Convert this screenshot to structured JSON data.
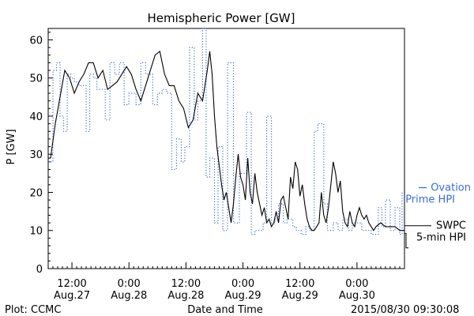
{
  "chart_data": {
    "type": "line",
    "title": "Hemispheric Power [GW]",
    "xlabel": "Date and Time",
    "ylabel": "P [GW]",
    "ylim": [
      0,
      63
    ],
    "xlim": [
      "2015-08-27T07:00",
      "2015-08-30T10:00"
    ],
    "grid": false,
    "yticks": [
      0,
      10,
      20,
      30,
      40,
      50,
      60
    ],
    "xticks": [
      {
        "t": "2015-08-27T12:00",
        "time": "12:00",
        "date": "Aug.27"
      },
      {
        "t": "2015-08-28T00:00",
        "time": "0:00",
        "date": "Aug.28"
      },
      {
        "t": "2015-08-28T12:00",
        "time": "12:00",
        "date": "Aug.28"
      },
      {
        "t": "2015-08-29T00:00",
        "time": "0:00",
        "date": "Aug.29"
      },
      {
        "t": "2015-08-29T12:00",
        "time": "12:00",
        "date": "Aug.29"
      },
      {
        "t": "2015-08-30T00:00",
        "time": "0:00",
        "date": "Aug.30"
      }
    ],
    "series": [
      {
        "name": "Ovation Prime HPI",
        "color": "#3b6fd6",
        "style": "stepped-dotted",
        "points": [
          [
            "2015-08-27T07:00",
            28
          ],
          [
            "2015-08-27T08:00",
            52
          ],
          [
            "2015-08-27T08:45",
            54
          ],
          [
            "2015-08-27T09:30",
            40
          ],
          [
            "2015-08-27T10:15",
            36
          ],
          [
            "2015-08-27T11:00",
            51
          ],
          [
            "2015-08-27T11:45",
            50
          ],
          [
            "2015-08-27T12:30",
            49
          ],
          [
            "2015-08-27T13:30",
            48
          ],
          [
            "2015-08-27T15:00",
            36
          ],
          [
            "2015-08-27T15:45",
            51
          ],
          [
            "2015-08-27T16:30",
            50
          ],
          [
            "2015-08-27T17:15",
            47
          ],
          [
            "2015-08-27T19:00",
            39
          ],
          [
            "2015-08-27T20:00",
            54
          ],
          [
            "2015-08-27T21:00",
            51
          ],
          [
            "2015-08-27T22:00",
            54
          ],
          [
            "2015-08-27T23:00",
            43
          ],
          [
            "2015-08-28T00:00",
            46
          ],
          [
            "2015-08-28T01:30",
            43
          ],
          [
            "2015-08-28T02:30",
            54
          ],
          [
            "2015-08-28T03:30",
            51
          ],
          [
            "2015-08-28T05:00",
            43
          ],
          [
            "2015-08-28T06:00",
            46
          ],
          [
            "2015-08-28T07:00",
            47
          ],
          [
            "2015-08-28T08:00",
            46
          ],
          [
            "2015-08-28T09:00",
            26
          ],
          [
            "2015-08-28T10:00",
            34
          ],
          [
            "2015-08-28T11:00",
            28
          ],
          [
            "2015-08-28T11:45",
            32
          ],
          [
            "2015-08-28T12:45",
            58
          ],
          [
            "2015-08-28T13:45",
            39
          ],
          [
            "2015-08-28T14:30",
            44
          ],
          [
            "2015-08-28T15:30",
            63
          ],
          [
            "2015-08-28T16:15",
            24
          ],
          [
            "2015-08-28T17:00",
            29
          ],
          [
            "2015-08-28T18:00",
            12
          ],
          [
            "2015-08-28T18:45",
            32
          ],
          [
            "2015-08-28T19:45",
            10
          ],
          [
            "2015-08-28T20:45",
            54
          ],
          [
            "2015-08-28T22:00",
            12
          ],
          [
            "2015-08-28T23:15",
            25
          ],
          [
            "2015-08-29T00:00",
            25
          ],
          [
            "2015-08-29T00:45",
            41
          ],
          [
            "2015-08-29T01:45",
            9
          ],
          [
            "2015-08-29T02:30",
            10
          ],
          [
            "2015-08-29T03:15",
            10
          ],
          [
            "2015-08-29T04:15",
            12
          ],
          [
            "2015-08-29T05:00",
            40
          ],
          [
            "2015-08-29T06:00",
            12
          ],
          [
            "2015-08-29T06:45",
            13
          ],
          [
            "2015-08-29T07:30",
            17
          ],
          [
            "2015-08-29T08:30",
            12
          ],
          [
            "2015-08-29T09:15",
            13
          ],
          [
            "2015-08-29T10:30",
            11
          ],
          [
            "2015-08-29T11:15",
            10
          ],
          [
            "2015-08-29T12:15",
            9
          ],
          [
            "2015-08-29T13:15",
            11
          ],
          [
            "2015-08-29T14:00",
            10
          ],
          [
            "2015-08-29T15:00",
            36
          ],
          [
            "2015-08-29T15:45",
            38
          ],
          [
            "2015-08-29T17:00",
            17
          ],
          [
            "2015-08-29T17:45",
            10
          ],
          [
            "2015-08-29T19:00",
            12
          ],
          [
            "2015-08-29T20:00",
            10
          ],
          [
            "2015-08-29T21:00",
            13
          ],
          [
            "2015-08-29T22:15",
            10
          ],
          [
            "2015-08-29T23:00",
            12
          ],
          [
            "2015-08-30T01:00",
            10
          ],
          [
            "2015-08-30T03:00",
            9
          ],
          [
            "2015-08-30T04:30",
            16
          ],
          [
            "2015-08-30T05:15",
            11
          ],
          [
            "2015-08-30T06:00",
            18
          ],
          [
            "2015-08-30T07:00",
            10
          ],
          [
            "2015-08-30T08:00",
            16
          ],
          [
            "2015-08-30T09:00",
            9
          ],
          [
            "2015-08-30T09:30",
            20
          ]
        ]
      },
      {
        "name": "SWPC 5-min HPI",
        "color": "#000000",
        "style": "solid",
        "points": [
          [
            "2015-08-27T07:00",
            29
          ],
          [
            "2015-08-27T07:30",
            29
          ],
          [
            "2015-08-27T08:30",
            38
          ],
          [
            "2015-08-27T09:30",
            45
          ],
          [
            "2015-08-27T10:30",
            52
          ],
          [
            "2015-08-27T11:30",
            50
          ],
          [
            "2015-08-27T12:30",
            46
          ],
          [
            "2015-08-27T13:30",
            49
          ],
          [
            "2015-08-27T14:30",
            51
          ],
          [
            "2015-08-27T15:30",
            54
          ],
          [
            "2015-08-27T16:30",
            54
          ],
          [
            "2015-08-27T17:30",
            50
          ],
          [
            "2015-08-27T18:30",
            52
          ],
          [
            "2015-08-27T19:30",
            47
          ],
          [
            "2015-08-27T20:30",
            48
          ],
          [
            "2015-08-27T21:30",
            49
          ],
          [
            "2015-08-27T22:30",
            51
          ],
          [
            "2015-08-27T23:30",
            53
          ],
          [
            "2015-08-28T00:30",
            51
          ],
          [
            "2015-08-28T01:30",
            47
          ],
          [
            "2015-08-28T02:30",
            44
          ],
          [
            "2015-08-28T03:30",
            48
          ],
          [
            "2015-08-28T04:30",
            52
          ],
          [
            "2015-08-28T05:30",
            56
          ],
          [
            "2015-08-28T06:30",
            57
          ],
          [
            "2015-08-28T07:30",
            51
          ],
          [
            "2015-08-28T08:30",
            48
          ],
          [
            "2015-08-28T09:30",
            48
          ],
          [
            "2015-08-28T10:30",
            44
          ],
          [
            "2015-08-28T11:30",
            42
          ],
          [
            "2015-08-28T12:30",
            37
          ],
          [
            "2015-08-28T13:30",
            39
          ],
          [
            "2015-08-28T14:30",
            46
          ],
          [
            "2015-08-28T15:30",
            44
          ],
          [
            "2015-08-28T16:30",
            52
          ],
          [
            "2015-08-28T17:00",
            57
          ],
          [
            "2015-08-28T17:30",
            51
          ],
          [
            "2015-08-28T18:00",
            40
          ],
          [
            "2015-08-28T18:30",
            32
          ],
          [
            "2015-08-28T19:00",
            27
          ],
          [
            "2015-08-28T19:30",
            22
          ],
          [
            "2015-08-28T20:00",
            18
          ],
          [
            "2015-08-28T20:30",
            20
          ],
          [
            "2015-08-28T21:00",
            16
          ],
          [
            "2015-08-28T21:30",
            12
          ],
          [
            "2015-08-28T22:00",
            17
          ],
          [
            "2015-08-28T22:30",
            24
          ],
          [
            "2015-08-28T23:00",
            30
          ],
          [
            "2015-08-28T23:30",
            24
          ],
          [
            "2015-08-29T00:00",
            22
          ],
          [
            "2015-08-29T00:30",
            18
          ],
          [
            "2015-08-29T01:00",
            29
          ],
          [
            "2015-08-29T01:30",
            20
          ],
          [
            "2015-08-29T02:00",
            17
          ],
          [
            "2015-08-29T02:30",
            25
          ],
          [
            "2015-08-29T03:00",
            20
          ],
          [
            "2015-08-29T03:30",
            17
          ],
          [
            "2015-08-29T04:00",
            14
          ],
          [
            "2015-08-29T04:30",
            16
          ],
          [
            "2015-08-29T05:00",
            12
          ],
          [
            "2015-08-29T05:30",
            13
          ],
          [
            "2015-08-29T06:00",
            11
          ],
          [
            "2015-08-29T06:30",
            12
          ],
          [
            "2015-08-29T07:00",
            15
          ],
          [
            "2015-08-29T07:30",
            12
          ],
          [
            "2015-08-29T08:00",
            18
          ],
          [
            "2015-08-29T08:30",
            19
          ],
          [
            "2015-08-29T09:00",
            16
          ],
          [
            "2015-08-29T09:30",
            13
          ],
          [
            "2015-08-29T10:00",
            24
          ],
          [
            "2015-08-29T10:30",
            21
          ],
          [
            "2015-08-29T11:00",
            28
          ],
          [
            "2015-08-29T11:30",
            26
          ],
          [
            "2015-08-29T12:00",
            19
          ],
          [
            "2015-08-29T12:30",
            22
          ],
          [
            "2015-08-29T13:00",
            17
          ],
          [
            "2015-08-29T13:30",
            13
          ],
          [
            "2015-08-29T14:00",
            11
          ],
          [
            "2015-08-29T14:30",
            10
          ],
          [
            "2015-08-29T15:00",
            10
          ],
          [
            "2015-08-29T15:30",
            11
          ],
          [
            "2015-08-29T16:00",
            12
          ],
          [
            "2015-08-29T16:30",
            20
          ],
          [
            "2015-08-29T17:00",
            14
          ],
          [
            "2015-08-29T17:30",
            12
          ],
          [
            "2015-08-29T18:00",
            16
          ],
          [
            "2015-08-29T18:30",
            22
          ],
          [
            "2015-08-29T19:00",
            28
          ],
          [
            "2015-08-29T19:30",
            25
          ],
          [
            "2015-08-29T20:00",
            20
          ],
          [
            "2015-08-29T20:30",
            23
          ],
          [
            "2015-08-29T21:00",
            15
          ],
          [
            "2015-08-29T21:30",
            12
          ],
          [
            "2015-08-29T22:00",
            11
          ],
          [
            "2015-08-29T22:30",
            15
          ],
          [
            "2015-08-29T23:00",
            12
          ],
          [
            "2015-08-29T23:30",
            11
          ],
          [
            "2015-08-30T00:00",
            14
          ],
          [
            "2015-08-30T00:30",
            16
          ],
          [
            "2015-08-30T01:00",
            14
          ],
          [
            "2015-08-30T01:30",
            13
          ],
          [
            "2015-08-30T02:00",
            14
          ],
          [
            "2015-08-30T02:30",
            12
          ],
          [
            "2015-08-30T03:00",
            11
          ],
          [
            "2015-08-30T03:30",
            10
          ],
          [
            "2015-08-30T04:00",
            11
          ],
          [
            "2015-08-30T05:00",
            12
          ],
          [
            "2015-08-30T06:00",
            11
          ],
          [
            "2015-08-30T07:00",
            11
          ],
          [
            "2015-08-30T08:00",
            11
          ],
          [
            "2015-08-30T09:00",
            10
          ],
          [
            "2015-08-30T10:00",
            10
          ]
        ]
      }
    ],
    "legend": [
      {
        "series": "Ovation Prime HPI",
        "lines": [
          "Ovation",
          "Prime HPI"
        ],
        "color": "#3b6fd6",
        "placement": "right"
      },
      {
        "series": "SWPC 5-min HPI",
        "lines": [
          "SWPC",
          "5-min HPI"
        ],
        "color": "#000000",
        "placement": "right"
      }
    ]
  },
  "footer": {
    "credit": "Plot: CCMC",
    "timestamp": "2015/08/30 09:30:08"
  }
}
